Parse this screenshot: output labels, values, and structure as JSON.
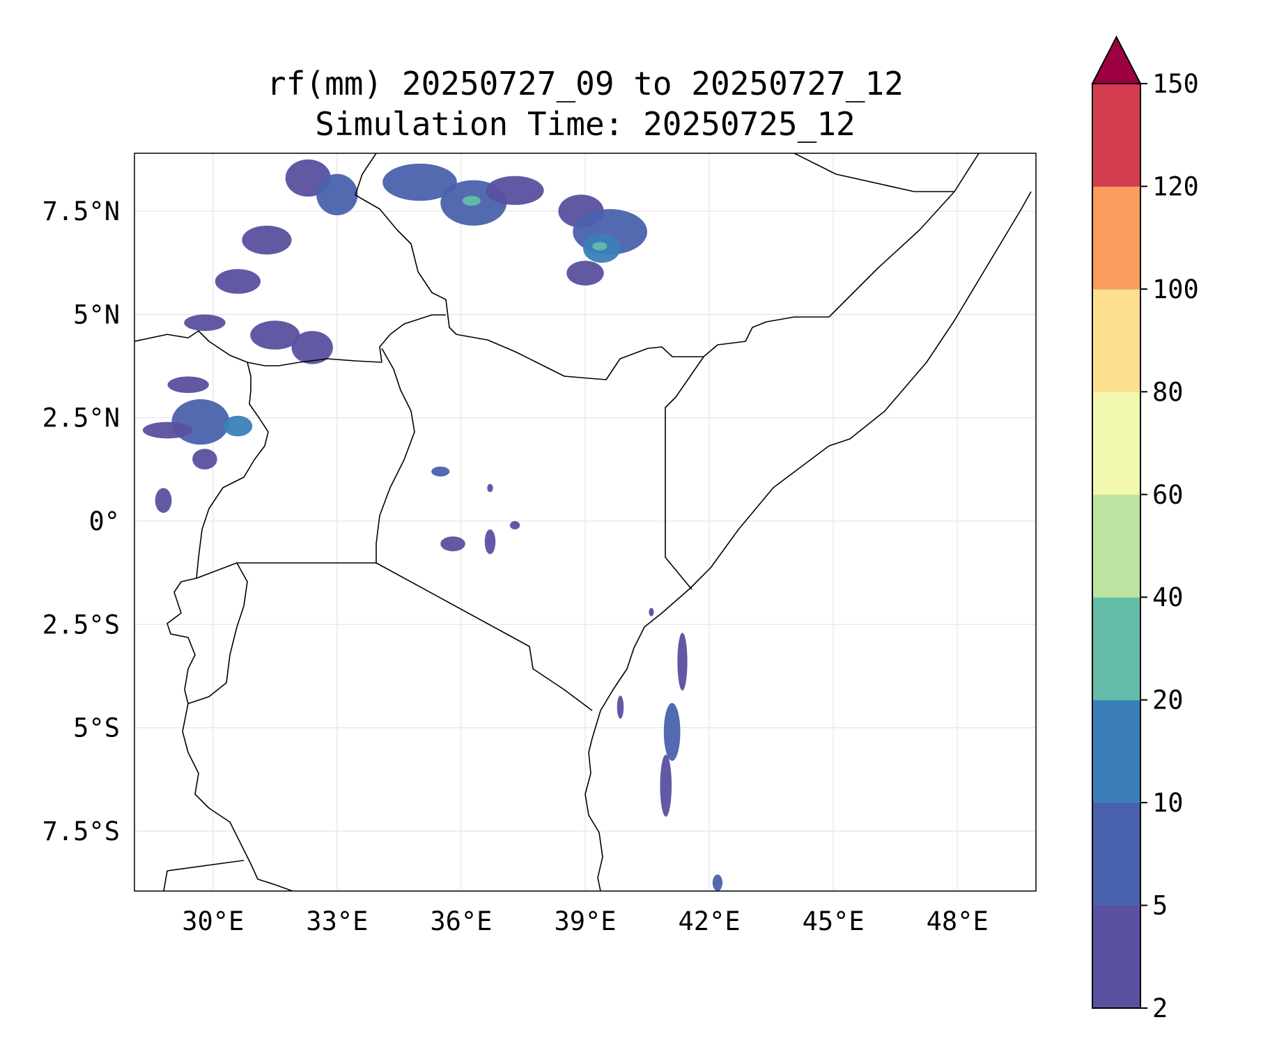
{
  "chart_data": {
    "type": "heatmap",
    "title": "rf(mm) 20250727_09 to 20250727_12",
    "subtitle": "Simulation Time: 20250725_12",
    "variable": "rf(mm)",
    "x_ticks": [
      {
        "value": 30,
        "label": "30°E"
      },
      {
        "value": 33,
        "label": "33°E"
      },
      {
        "value": 36,
        "label": "36°E"
      },
      {
        "value": 39,
        "label": "39°E"
      },
      {
        "value": 42,
        "label": "42°E"
      },
      {
        "value": 45,
        "label": "45°E"
      },
      {
        "value": 48,
        "label": "48°E"
      }
    ],
    "y_ticks": [
      {
        "value": 7.5,
        "label": "7.5°N"
      },
      {
        "value": 5,
        "label": "5°N"
      },
      {
        "value": 2.5,
        "label": "2.5°N"
      },
      {
        "value": 0,
        "label": "0°"
      },
      {
        "value": -2.5,
        "label": "2.5°S"
      },
      {
        "value": -5,
        "label": "5°S"
      },
      {
        "value": -7.5,
        "label": "7.5°S"
      }
    ],
    "xlim": [
      28.1,
      49.9
    ],
    "ylim": [
      -8.95,
      8.9
    ],
    "grid": true,
    "colorbar": {
      "levels": [
        2,
        5,
        10,
        20,
        40,
        60,
        80,
        100,
        120,
        150
      ],
      "labels": [
        "2",
        "5",
        "10",
        "20",
        "40",
        "60",
        "80",
        "100",
        "120",
        "150"
      ],
      "colors": [
        "#5a50a0",
        "#4a62ad",
        "#3b7fb9",
        "#63bda9",
        "#bce4a0",
        "#f2f8ae",
        "#fddf8f",
        "#f99c5c",
        "#d43d50"
      ],
      "extend_color": "#9e0142",
      "extend": "max"
    },
    "rain_cells": [
      {
        "lon": 32.3,
        "lat": 8.3,
        "rx": 0.55,
        "ry": 0.45,
        "level": 0
      },
      {
        "lon": 33.0,
        "lat": 7.9,
        "rx": 0.5,
        "ry": 0.5,
        "level": 1
      },
      {
        "lon": 35.0,
        "lat": 8.2,
        "rx": 0.9,
        "ry": 0.45,
        "level": 1
      },
      {
        "lon": 36.3,
        "lat": 7.7,
        "rx": 0.8,
        "ry": 0.55,
        "level": 1
      },
      {
        "lon": 36.25,
        "lat": 7.75,
        "rx": 0.22,
        "ry": 0.12,
        "level": 3
      },
      {
        "lon": 37.3,
        "lat": 8.0,
        "rx": 0.7,
        "ry": 0.35,
        "level": 0
      },
      {
        "lon": 38.9,
        "lat": 7.5,
        "rx": 0.55,
        "ry": 0.4,
        "level": 0
      },
      {
        "lon": 39.6,
        "lat": 7.0,
        "rx": 0.9,
        "ry": 0.55,
        "level": 1
      },
      {
        "lon": 39.4,
        "lat": 6.6,
        "rx": 0.45,
        "ry": 0.35,
        "level": 2
      },
      {
        "lon": 39.35,
        "lat": 6.65,
        "rx": 0.18,
        "ry": 0.1,
        "level": 3
      },
      {
        "lon": 39.0,
        "lat": 6.0,
        "rx": 0.45,
        "ry": 0.3,
        "level": 0
      },
      {
        "lon": 31.3,
        "lat": 6.8,
        "rx": 0.6,
        "ry": 0.35,
        "level": 0
      },
      {
        "lon": 30.6,
        "lat": 5.8,
        "rx": 0.55,
        "ry": 0.3,
        "level": 0
      },
      {
        "lon": 31.5,
        "lat": 4.5,
        "rx": 0.6,
        "ry": 0.35,
        "level": 0
      },
      {
        "lon": 32.4,
        "lat": 4.2,
        "rx": 0.5,
        "ry": 0.4,
        "level": 0
      },
      {
        "lon": 29.8,
        "lat": 4.8,
        "rx": 0.5,
        "ry": 0.2,
        "level": 0
      },
      {
        "lon": 29.7,
        "lat": 2.4,
        "rx": 0.7,
        "ry": 0.55,
        "level": 1
      },
      {
        "lon": 30.6,
        "lat": 2.3,
        "rx": 0.35,
        "ry": 0.25,
        "level": 2
      },
      {
        "lon": 28.9,
        "lat": 2.2,
        "rx": 0.6,
        "ry": 0.2,
        "level": 0
      },
      {
        "lon": 29.4,
        "lat": 3.3,
        "rx": 0.5,
        "ry": 0.2,
        "level": 0
      },
      {
        "lon": 29.8,
        "lat": 1.5,
        "rx": 0.3,
        "ry": 0.25,
        "level": 0
      },
      {
        "lon": 28.8,
        "lat": 0.5,
        "rx": 0.2,
        "ry": 0.3,
        "level": 0
      },
      {
        "lon": 35.5,
        "lat": 1.2,
        "rx": 0.22,
        "ry": 0.12,
        "level": 1
      },
      {
        "lon": 35.8,
        "lat": -0.55,
        "rx": 0.3,
        "ry": 0.18,
        "level": 0
      },
      {
        "lon": 36.7,
        "lat": -0.5,
        "rx": 0.13,
        "ry": 0.3,
        "level": 0
      },
      {
        "lon": 37.3,
        "lat": -0.1,
        "rx": 0.12,
        "ry": 0.1,
        "level": 0
      },
      {
        "lon": 36.7,
        "lat": 0.8,
        "rx": 0.07,
        "ry": 0.1,
        "level": 0
      },
      {
        "lon": 41.35,
        "lat": -3.4,
        "rx": 0.12,
        "ry": 0.7,
        "level": 0
      },
      {
        "lon": 41.1,
        "lat": -5.1,
        "rx": 0.2,
        "ry": 0.7,
        "level": 1
      },
      {
        "lon": 40.95,
        "lat": -6.4,
        "rx": 0.14,
        "ry": 0.75,
        "level": 0
      },
      {
        "lon": 39.85,
        "lat": -4.5,
        "rx": 0.08,
        "ry": 0.28,
        "level": 0
      },
      {
        "lon": 42.2,
        "lat": -8.75,
        "rx": 0.12,
        "ry": 0.2,
        "level": 1
      },
      {
        "lon": 40.6,
        "lat": -2.2,
        "rx": 0.06,
        "ry": 0.1,
        "level": 0
      }
    ]
  }
}
